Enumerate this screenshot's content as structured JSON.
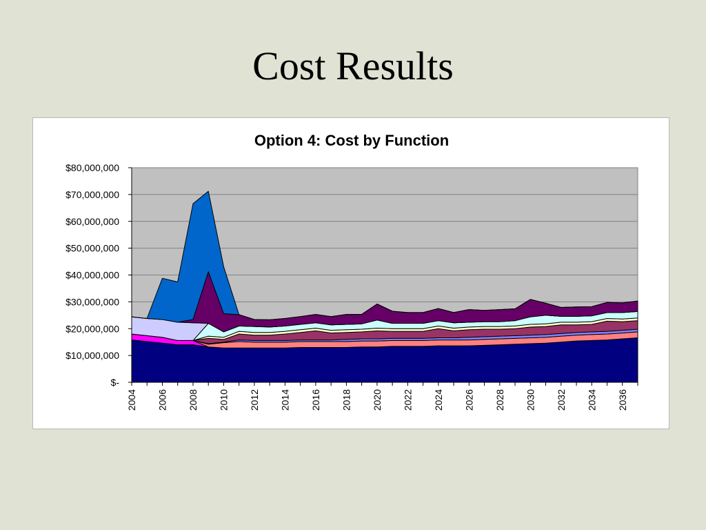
{
  "slide": {
    "title": "Cost Results"
  },
  "chart_data": {
    "type": "area",
    "stacked": true,
    "title": "Option 4: Cost by Function",
    "xlabel": "",
    "ylabel": "",
    "ylim": [
      0,
      80000000
    ],
    "grid": true,
    "legend": "none",
    "plot_background": "#c0c0c0",
    "x": [
      2004,
      2005,
      2006,
      2007,
      2008,
      2009,
      2010,
      2011,
      2012,
      2013,
      2014,
      2015,
      2016,
      2017,
      2018,
      2019,
      2020,
      2021,
      2022,
      2023,
      2024,
      2025,
      2026,
      2027,
      2028,
      2029,
      2030,
      2031,
      2032,
      2033,
      2034,
      2035,
      2036,
      2037
    ],
    "x_tick_labels": [
      "2004",
      "2006",
      "2008",
      "2010",
      "2012",
      "2014",
      "2016",
      "2018",
      "2020",
      "2022",
      "2024",
      "2026",
      "2028",
      "2030",
      "2032",
      "2034",
      "2036"
    ],
    "y_tick_labels": [
      "$-",
      "$10,000,000",
      "$20,000,000",
      "$30,000,000",
      "$40,000,000",
      "$50,000,000",
      "$60,000,000",
      "$70,000,000",
      "$80,000,000"
    ],
    "series": [
      {
        "color": "#000080",
        "values": [
          15800000,
          15200000,
          14600000,
          14000000,
          14000000,
          13200000,
          12800000,
          12800000,
          12800000,
          12800000,
          12800000,
          13000000,
          13000000,
          13000000,
          13000000,
          13200000,
          13200000,
          13400000,
          13400000,
          13400000,
          13600000,
          13600000,
          13600000,
          13800000,
          14000000,
          14200000,
          14400000,
          14600000,
          15000000,
          15400000,
          15600000,
          15800000,
          16200000,
          16600000
        ]
      },
      {
        "color": "#ff00ff",
        "values": [
          2200000,
          2200000,
          2200000,
          1600000,
          1600000,
          0,
          0,
          0,
          0,
          0,
          0,
          0,
          0,
          0,
          0,
          0,
          0,
          0,
          0,
          0,
          0,
          0,
          0,
          0,
          0,
          0,
          0,
          0,
          0,
          0,
          0,
          0,
          0,
          0
        ]
      },
      {
        "color": "#ff8080",
        "values": [
          0,
          0,
          0,
          0,
          0,
          1000000,
          2000000,
          2400000,
          2200000,
          2200000,
          2200000,
          2200000,
          2200000,
          2200000,
          2200000,
          2200000,
          2200000,
          2200000,
          2200000,
          2200000,
          2200000,
          2200000,
          2200000,
          2200000,
          2200000,
          2200000,
          2200000,
          2200000,
          2200000,
          2200000,
          2200000,
          2200000,
          2200000,
          2200000
        ]
      },
      {
        "color": "#8080ff",
        "values": [
          0,
          0,
          0,
          0,
          0,
          200000,
          200000,
          600000,
          600000,
          600000,
          600000,
          600000,
          600000,
          600000,
          800000,
          800000,
          800000,
          800000,
          800000,
          800000,
          800000,
          800000,
          1000000,
          1000000,
          1000000,
          1000000,
          1000000,
          1000000,
          1000000,
          1000000,
          1000000,
          1000000,
          1000000,
          1000000
        ]
      },
      {
        "color": "#993366",
        "values": [
          0,
          0,
          0,
          0,
          0,
          2000000,
          1000000,
          2200000,
          2000000,
          2000000,
          2400000,
          2800000,
          3400000,
          2600000,
          2600000,
          2600000,
          3000000,
          2600000,
          2600000,
          2600000,
          3400000,
          2600000,
          2800000,
          2800000,
          2600000,
          2600000,
          3000000,
          3000000,
          3200000,
          2800000,
          2800000,
          3800000,
          3200000,
          3200000
        ]
      },
      {
        "color": "#ffffcc",
        "values": [
          0,
          0,
          0,
          0,
          0,
          800000,
          800000,
          1000000,
          1000000,
          1000000,
          1000000,
          1000000,
          1000000,
          1000000,
          1000000,
          1000000,
          1000000,
          1000000,
          1000000,
          1000000,
          1000000,
          1000000,
          1000000,
          1000000,
          1000000,
          1000000,
          1000000,
          1000000,
          1000000,
          1000000,
          1000000,
          1000000,
          1000000,
          1000000
        ]
      },
      {
        "color": "#ccffff",
        "values": [
          0,
          0,
          0,
          0,
          0,
          4800000,
          2000000,
          2000000,
          2200000,
          2000000,
          2000000,
          2000000,
          2000000,
          2000000,
          2000000,
          2000000,
          3000000,
          2000000,
          2000000,
          2000000,
          2000000,
          2000000,
          1800000,
          1800000,
          1800000,
          2000000,
          2800000,
          3200000,
          2200000,
          2200000,
          2200000,
          2200000,
          2400000,
          2400000
        ]
      },
      {
        "color": "#ccccff",
        "values": [
          6400000,
          6400000,
          6600000,
          6800000,
          6600000,
          0,
          0,
          0,
          0,
          0,
          0,
          0,
          0,
          0,
          0,
          0,
          0,
          0,
          0,
          0,
          0,
          0,
          0,
          0,
          0,
          0,
          0,
          0,
          0,
          0,
          0,
          0,
          0,
          0
        ]
      },
      {
        "color": "#660066",
        "values": [
          0,
          0,
          0,
          0,
          1200000,
          19200000,
          6800000,
          4200000,
          2600000,
          2700000,
          2800000,
          2900000,
          3100000,
          3100000,
          3700000,
          3500000,
          6000000,
          4500000,
          4000000,
          4000000,
          4500000,
          3800000,
          4700000,
          4200000,
          4500000,
          4400000,
          6500000,
          4500000,
          3300000,
          3500000,
          3400000,
          3800000,
          3600000,
          3900000
        ]
      },
      {
        "color": "#0066cc",
        "values": [
          0,
          0,
          15400000,
          15000000,
          43200000,
          30000000,
          17400000,
          0,
          0,
          0,
          0,
          0,
          0,
          0,
          0,
          0,
          0,
          0,
          0,
          0,
          0,
          0,
          0,
          0,
          0,
          0,
          0,
          0,
          0,
          0,
          0,
          0,
          0,
          0
        ]
      }
    ]
  }
}
